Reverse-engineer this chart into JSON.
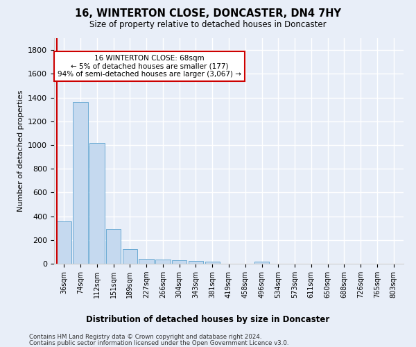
{
  "title": "16, WINTERTON CLOSE, DONCASTER, DN4 7HY",
  "subtitle": "Size of property relative to detached houses in Doncaster",
  "xlabel_dist": "Distribution of detached houses by size in Doncaster",
  "ylabel": "Number of detached properties",
  "categories": [
    "36sqm",
    "74sqm",
    "112sqm",
    "151sqm",
    "189sqm",
    "227sqm",
    "266sqm",
    "304sqm",
    "343sqm",
    "381sqm",
    "419sqm",
    "458sqm",
    "496sqm",
    "534sqm",
    "573sqm",
    "611sqm",
    "650sqm",
    "688sqm",
    "726sqm",
    "765sqm",
    "803sqm"
  ],
  "values": [
    355,
    1360,
    1020,
    290,
    125,
    42,
    35,
    30,
    22,
    20,
    0,
    0,
    20,
    0,
    0,
    0,
    0,
    0,
    0,
    0,
    0
  ],
  "bar_color": "#c5d9ef",
  "bar_edge_color": "#6aaad4",
  "ylim": [
    0,
    1900
  ],
  "yticks": [
    0,
    200,
    400,
    600,
    800,
    1000,
    1200,
    1400,
    1600,
    1800
  ],
  "annotation_text": "16 WINTERTON CLOSE: 68sqm\n← 5% of detached houses are smaller (177)\n94% of semi-detached houses are larger (3,067) →",
  "annotation_box_color": "#ffffff",
  "annotation_box_edge_color": "#cc0000",
  "vline_color": "#cc0000",
  "footnote1": "Contains HM Land Registry data © Crown copyright and database right 2024.",
  "footnote2": "Contains public sector information licensed under the Open Government Licence v3.0.",
  "bg_color": "#e8eef8",
  "plot_bg_color": "#e8eef8",
  "grid_color": "#ffffff",
  "vline_x": -0.45
}
